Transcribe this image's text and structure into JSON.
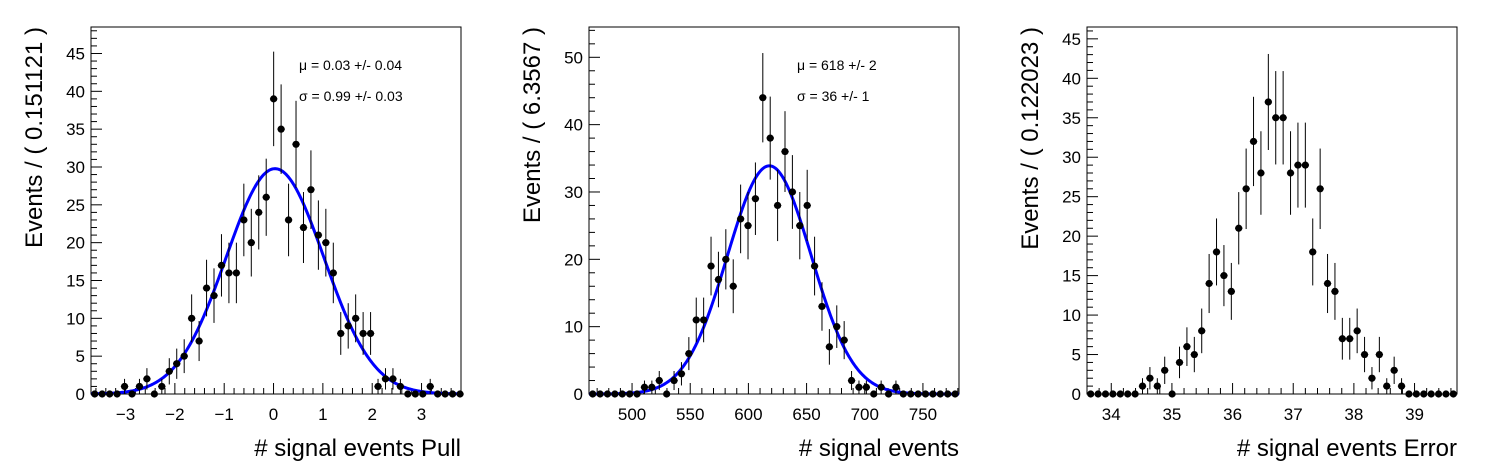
{
  "chart_data": [
    {
      "type": "scatter",
      "xlabel": "# signal events Pull",
      "ylabel": "Events / ( 0.151121 )",
      "xlim": [
        -3.7,
        3.8
      ],
      "ylim": [
        0,
        48.5
      ],
      "xticks": [
        -3,
        -2,
        -1,
        0,
        1,
        2,
        3
      ],
      "yticks": [
        0,
        5,
        10,
        15,
        20,
        25,
        30,
        35,
        40,
        45
      ],
      "annotations": [
        "μ =  0.03 +/- 0.04",
        "σ =  0.99 +/- 0.03"
      ],
      "fit": {
        "type": "gaussian",
        "mu": 0.03,
        "sigma": 0.99,
        "color": "#0000ff"
      },
      "x0": -3.7,
      "binw": 0.151121,
      "values": [
        0,
        0,
        0,
        0,
        1,
        0,
        1,
        2,
        0,
        1,
        3,
        4,
        5,
        10,
        7,
        14,
        13,
        17,
        16,
        16,
        23,
        20,
        24,
        26,
        39,
        35,
        23,
        33,
        22,
        27,
        21,
        20,
        16,
        8,
        9,
        10,
        8,
        8,
        1,
        2,
        2,
        1,
        0,
        0,
        0,
        1,
        0,
        0,
        0,
        0
      ],
      "color": "#000000",
      "grid": false
    },
    {
      "type": "scatter",
      "xlabel": "# signal events",
      "ylabel": "Events / ( 6.3567 )",
      "xlim": [
        463,
        781
      ],
      "ylim": [
        0,
        54.5
      ],
      "xticks": [
        500,
        550,
        600,
        650,
        700,
        750
      ],
      "yticks": [
        0,
        10,
        20,
        30,
        40,
        50
      ],
      "annotations": [
        "μ =  618 +/- 2",
        "σ =  36 +/- 1"
      ],
      "fit": {
        "type": "gaussian",
        "mu": 618,
        "sigma": 36,
        "color": "#0000ff"
      },
      "x0": 463,
      "binw": 6.3567,
      "values": [
        0,
        0,
        0,
        0,
        0,
        0,
        0,
        1,
        1,
        2,
        0,
        2,
        3,
        6,
        11,
        11,
        19,
        17,
        20,
        16,
        26,
        25,
        29,
        44,
        38,
        28,
        36,
        30,
        25,
        28,
        19,
        13,
        7,
        10,
        8,
        2,
        1,
        1,
        0,
        1,
        0,
        1,
        0,
        0,
        0,
        0,
        0,
        0,
        0,
        0
      ],
      "color": "#000000",
      "grid": false
    },
    {
      "type": "scatter",
      "xlabel": "# signal events Error",
      "ylabel": "Events / ( 0.122023 )",
      "xlim": [
        33.6,
        39.7
      ],
      "ylim": [
        0,
        46.5
      ],
      "xticks": [
        34,
        35,
        36,
        37,
        38,
        39
      ],
      "yticks": [
        0,
        5,
        10,
        15,
        20,
        25,
        30,
        35,
        40,
        45
      ],
      "annotations": [],
      "x0": 33.6,
      "binw": 0.122023,
      "values": [
        0,
        0,
        0,
        0,
        0,
        0,
        0,
        1,
        2,
        1,
        3,
        0,
        4,
        6,
        5,
        8,
        14,
        18,
        15,
        13,
        21,
        26,
        32,
        28,
        37,
        35,
        35,
        28,
        29,
        29,
        18,
        26,
        14,
        13,
        7,
        7,
        8,
        5,
        2,
        5,
        1,
        3,
        1,
        0,
        0,
        0,
        0,
        0,
        0,
        0
      ],
      "color": "#000000",
      "grid": false
    }
  ]
}
